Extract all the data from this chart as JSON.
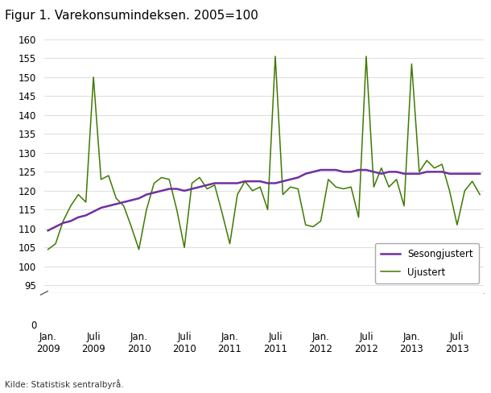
{
  "title": "Figur 1. Varekonsumindeksen. 2005=100",
  "source": "Kilde: Statistisk sentralbyrå.",
  "ylim_main": [
    93,
    160
  ],
  "yticks_main": [
    95,
    100,
    105,
    110,
    115,
    120,
    125,
    130,
    135,
    140,
    145,
    150,
    155,
    160
  ],
  "sesongjustert_color": "#7030a0",
  "ujustert_color": "#3d7a00",
  "grid_color": "#d0d0d0",
  "sesongjustert": [
    109.5,
    110.5,
    111.5,
    112.0,
    113.0,
    113.5,
    114.5,
    115.5,
    116.0,
    116.5,
    117.0,
    117.5,
    118.0,
    119.0,
    119.5,
    120.0,
    120.5,
    120.5,
    120.0,
    120.5,
    121.0,
    121.5,
    122.0,
    122.0,
    122.0,
    122.0,
    122.5,
    122.5,
    122.5,
    122.0,
    122.0,
    122.5,
    123.0,
    123.5,
    124.5,
    125.0,
    125.5,
    125.5,
    125.5,
    125.0,
    125.0,
    125.5,
    125.5,
    125.0,
    124.5,
    125.0,
    125.0,
    124.5,
    124.5,
    124.5,
    125.0,
    125.0,
    125.0,
    124.5,
    124.5,
    124.5,
    124.5,
    124.5
  ],
  "ujustert": [
    104.5,
    106.0,
    112.0,
    116.0,
    119.0,
    117.0,
    150.0,
    123.0,
    124.0,
    118.0,
    116.0,
    110.5,
    104.5,
    115.0,
    122.0,
    123.5,
    123.0,
    115.0,
    105.0,
    122.0,
    123.5,
    120.5,
    121.5,
    114.0,
    106.0,
    119.0,
    122.5,
    120.0,
    121.0,
    115.0,
    155.5,
    119.0,
    121.0,
    120.5,
    111.0,
    110.5,
    112.0,
    123.0,
    121.0,
    120.5,
    121.0,
    113.0,
    155.5,
    121.0,
    126.0,
    121.0,
    123.0,
    116.0,
    153.5,
    125.0,
    128.0,
    126.0,
    127.0,
    120.0,
    111.0,
    120.0,
    122.5,
    119.0
  ],
  "x_tick_positions": [
    0,
    6,
    12,
    18,
    24,
    30,
    36,
    42,
    48,
    54
  ],
  "x_tick_labels": [
    "Jan.\n2009",
    "Juli\n2009",
    "Jan.\n2010",
    "Juli\n2010",
    "Jan.\n2011",
    "Juli\n2011",
    "Jan.\n2012",
    "Juli\n2012",
    "Jan.\n2013",
    "Juli\n2013"
  ],
  "legend_labels": [
    "Sesongjustert",
    "Ujustert"
  ]
}
